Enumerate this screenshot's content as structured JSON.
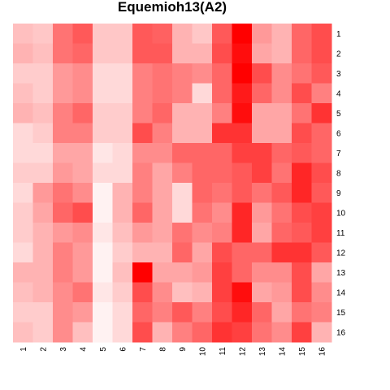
{
  "chart_data": {
    "type": "heatmap",
    "title": "Equemioh13(A2)",
    "x_labels": [
      "1",
      "2",
      "3",
      "4",
      "5",
      "6",
      "7",
      "8",
      "9",
      "10",
      "11",
      "12",
      "13",
      "14",
      "15",
      "16"
    ],
    "y_labels": [
      "1",
      "2",
      "3",
      "4",
      "5",
      "6",
      "7",
      "8",
      "9",
      "10",
      "11",
      "12",
      "13",
      "14",
      "15",
      "16"
    ],
    "value_range": [
      0,
      1
    ],
    "color_low": "#ffffff",
    "color_high": "#ff0000",
    "values": [
      [
        0.25,
        0.22,
        0.55,
        0.65,
        0.22,
        0.22,
        0.65,
        0.62,
        0.3,
        0.22,
        0.65,
        1.0,
        0.4,
        0.3,
        0.6,
        0.7
      ],
      [
        0.3,
        0.25,
        0.55,
        0.6,
        0.22,
        0.22,
        0.65,
        0.65,
        0.3,
        0.3,
        0.7,
        0.95,
        0.35,
        0.3,
        0.6,
        0.7
      ],
      [
        0.2,
        0.2,
        0.4,
        0.45,
        0.15,
        0.15,
        0.5,
        0.55,
        0.5,
        0.45,
        0.6,
        1.0,
        0.7,
        0.45,
        0.55,
        0.65
      ],
      [
        0.25,
        0.2,
        0.4,
        0.45,
        0.15,
        0.15,
        0.5,
        0.55,
        0.5,
        0.15,
        0.6,
        0.9,
        0.6,
        0.45,
        0.7,
        0.5
      ],
      [
        0.3,
        0.25,
        0.5,
        0.6,
        0.2,
        0.2,
        0.5,
        0.6,
        0.3,
        0.3,
        0.5,
        0.95,
        0.35,
        0.35,
        0.55,
        0.8
      ],
      [
        0.15,
        0.2,
        0.5,
        0.5,
        0.2,
        0.2,
        0.7,
        0.5,
        0.3,
        0.3,
        0.8,
        0.8,
        0.35,
        0.35,
        0.7,
        0.6
      ],
      [
        0.15,
        0.15,
        0.35,
        0.35,
        0.1,
        0.15,
        0.45,
        0.45,
        0.6,
        0.6,
        0.6,
        0.75,
        0.75,
        0.6,
        0.65,
        0.6
      ],
      [
        0.2,
        0.2,
        0.4,
        0.35,
        0.15,
        0.15,
        0.5,
        0.35,
        0.5,
        0.6,
        0.6,
        0.65,
        0.75,
        0.55,
        0.85,
        0.7
      ],
      [
        0.15,
        0.4,
        0.55,
        0.45,
        0.05,
        0.3,
        0.5,
        0.35,
        0.15,
        0.6,
        0.55,
        0.65,
        0.55,
        0.65,
        0.85,
        0.65
      ],
      [
        0.2,
        0.35,
        0.6,
        0.7,
        0.05,
        0.3,
        0.6,
        0.35,
        0.15,
        0.55,
        0.45,
        0.85,
        0.4,
        0.55,
        0.7,
        0.75
      ],
      [
        0.2,
        0.3,
        0.4,
        0.45,
        0.1,
        0.25,
        0.4,
        0.35,
        0.55,
        0.45,
        0.5,
        0.85,
        0.35,
        0.6,
        0.65,
        0.75
      ],
      [
        0.15,
        0.3,
        0.5,
        0.4,
        0.05,
        0.2,
        0.3,
        0.3,
        0.6,
        0.35,
        0.7,
        0.6,
        0.6,
        0.8,
        0.8,
        0.65
      ],
      [
        0.3,
        0.3,
        0.5,
        0.4,
        0.05,
        0.25,
        1.0,
        0.35,
        0.35,
        0.4,
        0.75,
        0.6,
        0.45,
        0.45,
        0.7,
        0.35
      ],
      [
        0.25,
        0.3,
        0.45,
        0.55,
        0.1,
        0.2,
        0.7,
        0.45,
        0.25,
        0.3,
        0.75,
        0.95,
        0.35,
        0.4,
        0.7,
        0.45
      ],
      [
        0.2,
        0.2,
        0.45,
        0.4,
        0.05,
        0.15,
        0.6,
        0.5,
        0.65,
        0.5,
        0.7,
        0.85,
        0.6,
        0.35,
        0.55,
        0.5
      ],
      [
        0.25,
        0.2,
        0.45,
        0.25,
        0.05,
        0.15,
        0.7,
        0.3,
        0.5,
        0.6,
        0.8,
        0.75,
        0.55,
        0.45,
        0.75,
        0.3
      ]
    ]
  }
}
